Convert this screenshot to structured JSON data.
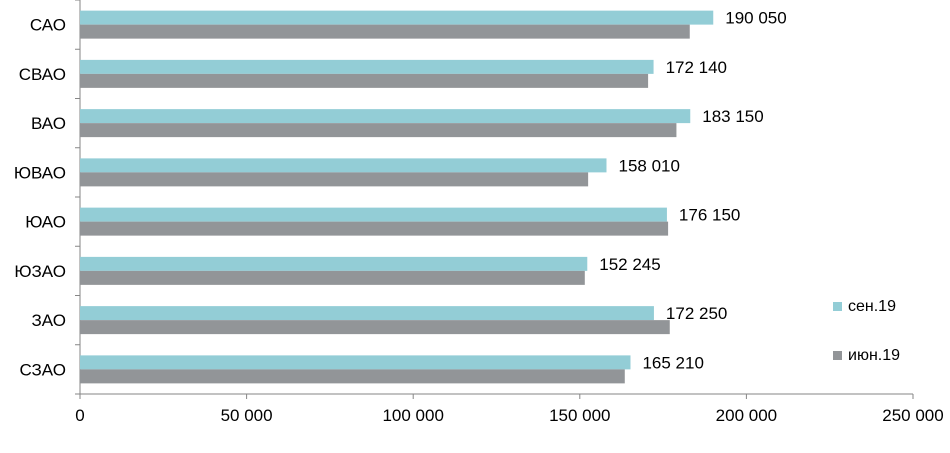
{
  "chart_data": {
    "type": "bar",
    "orientation": "horizontal",
    "categories": [
      "САО",
      "СВАО",
      "ВАО",
      "ЮВАО",
      "ЮАО",
      "ЮЗАО",
      "ЗАО",
      "СЗАО"
    ],
    "series": [
      {
        "name": "сен.19",
        "color": "#93cdd6",
        "values": [
          190050,
          172140,
          183150,
          158010,
          176150,
          152245,
          172250,
          165210
        ],
        "labels": [
          "190 050",
          "172 140",
          "183 150",
          "158 010",
          "176 150",
          "152 245",
          "172 250",
          "165 210"
        ]
      },
      {
        "name": "июн.19",
        "color": "#929598",
        "values": [
          183000,
          170500,
          179000,
          152500,
          176500,
          151500,
          177000,
          163500
        ]
      }
    ],
    "xlim": [
      0,
      250000
    ],
    "x_ticks": [
      0,
      50000,
      100000,
      150000,
      200000,
      250000
    ],
    "x_tick_labels": [
      "0",
      "50 000",
      "100 000",
      "150 000",
      "200 000",
      "250 000"
    ],
    "grid": false,
    "legend_position": "right"
  }
}
